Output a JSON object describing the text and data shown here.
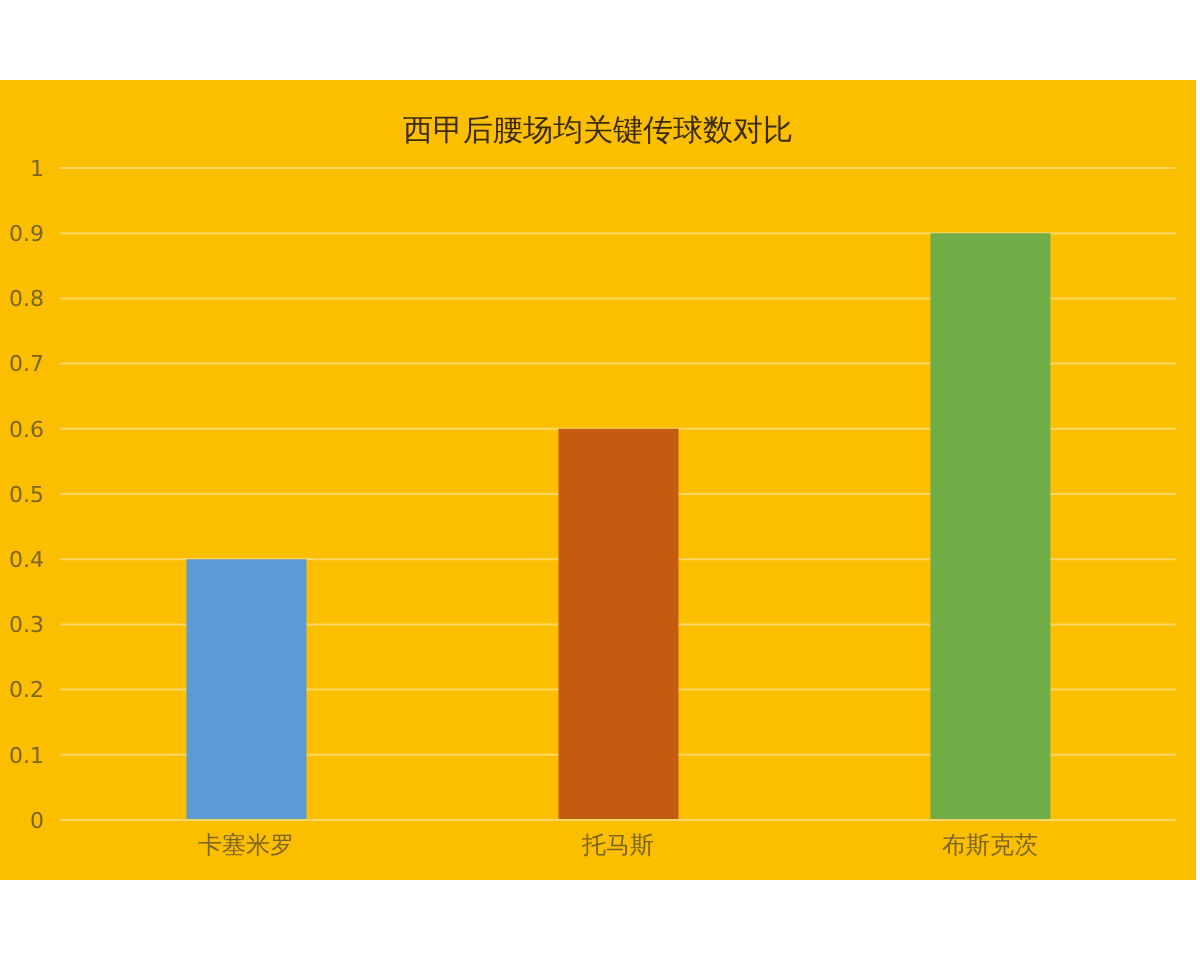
{
  "chart_data": {
    "type": "bar",
    "title": "西甲后腰场均关键传球数对比",
    "categories": [
      "卡塞米罗",
      "托马斯",
      "布斯克茨"
    ],
    "values": [
      0.4,
      0.6,
      0.9
    ],
    "colors": [
      "#5b9bd5",
      "#c55a11",
      "#70ad47"
    ],
    "ylim": [
      0,
      1
    ],
    "yticks": [
      0,
      0.1,
      0.2,
      0.3,
      0.4,
      0.5,
      0.6,
      0.7,
      0.8,
      0.9,
      1
    ],
    "grid": "y"
  }
}
